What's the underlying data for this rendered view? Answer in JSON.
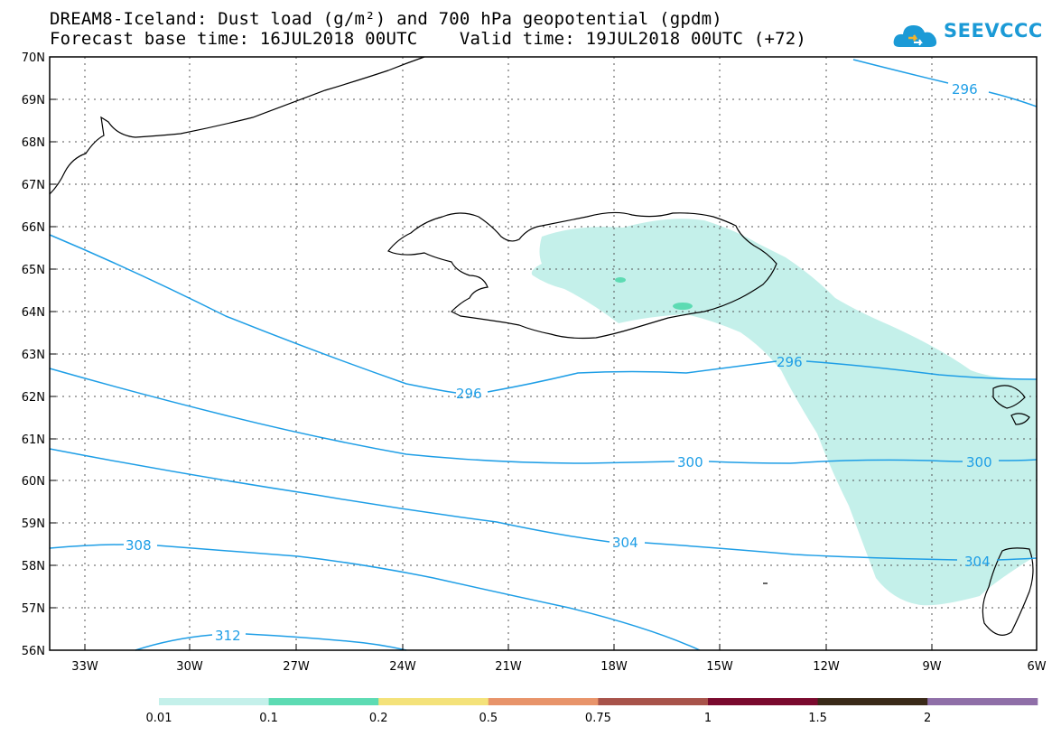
{
  "title": {
    "line1": "DREAM8-Iceland: Dust load (g/m²) and 700 hPa geopotential (gpdm)",
    "line2": "Forecast base time: 16JUL2018 00UTC    Valid time: 19JUL2018 00UTC (+72)"
  },
  "logo": {
    "text": "SEEVCCC",
    "icon": "cloud-icon",
    "color": "#1b9ad6"
  },
  "lat_labels": [
    "70N",
    "69N",
    "68N",
    "67N",
    "66N",
    "65N",
    "64N",
    "63N",
    "62N",
    "61N",
    "60N",
    "59N",
    "58N",
    "57N",
    "56N"
  ],
  "lon_labels": [
    "33W",
    "30W",
    "27W",
    "24W",
    "21W",
    "18W",
    "15W",
    "12W",
    "9W",
    "6W"
  ],
  "contour_labels": [
    "296",
    "296",
    "296",
    "300",
    "300",
    "304",
    "304",
    "308",
    "312"
  ],
  "colorbar": {
    "colors": [
      "#c4f0ea",
      "#5ddbb3",
      "#f4e27a",
      "#e8946a",
      "#a8534a",
      "#7a0a2e",
      "#3a2a18",
      "#8f6fa8"
    ],
    "labels": [
      "0.01",
      "0.1",
      "0.2",
      "0.5",
      "0.75",
      "1",
      "1.5",
      "2"
    ]
  },
  "style": {
    "contour_color": "#1e9ee6",
    "dust_fill": "#c4f0ea",
    "dust_patch": "#5ddbb3"
  }
}
